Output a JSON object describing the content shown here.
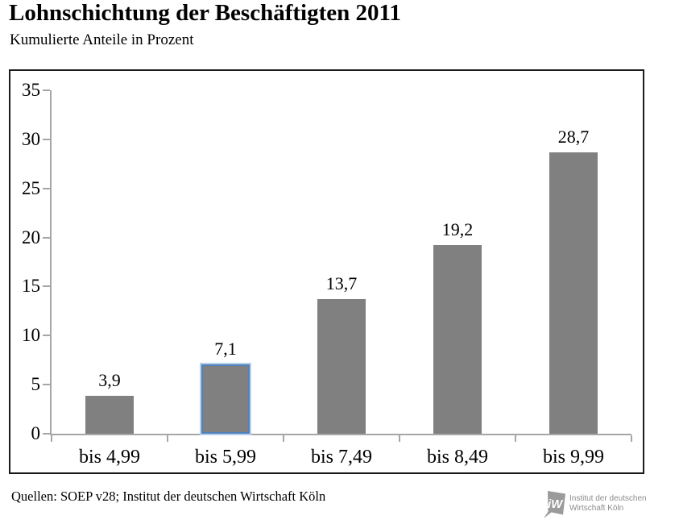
{
  "header": {
    "title": "Lohnschichtung der Beschäftigten 2011",
    "subtitle": "Kumulierte Anteile in Prozent"
  },
  "chart_data": {
    "type": "bar",
    "title": "Lohnschichtung der Beschäftigten 2011",
    "subtitle": "Kumulierte Anteile in Prozent",
    "categories": [
      "bis 4,99",
      "bis 5,99",
      "bis 7,49",
      "bis 8,49",
      "bis 9,99"
    ],
    "values": [
      3.9,
      7.1,
      13.7,
      19.2,
      28.7
    ],
    "value_labels": [
      "3,9",
      "7,1",
      "13,7",
      "19,2",
      "28,7"
    ],
    "xlabel": "",
    "ylabel": "",
    "ylim": [
      0,
      35
    ],
    "ytick_labels": [
      "0",
      "5",
      "10",
      "15",
      "20",
      "25",
      "30",
      "35"
    ],
    "grid": false,
    "legend": false,
    "bar_color": "#808080",
    "selected_index": 1,
    "selection_border_color": "#4f81bd",
    "axis_color": "#a6a6a6"
  },
  "footer": {
    "source": "Quellen: SOEP v28; Institut der deutschen Wirtschaft Köln",
    "logo": {
      "icon": "iw-koeln-logo",
      "mark_text": "iW",
      "line1": "Institut der deutschen",
      "line2": "Wirtschaft Köln"
    }
  }
}
